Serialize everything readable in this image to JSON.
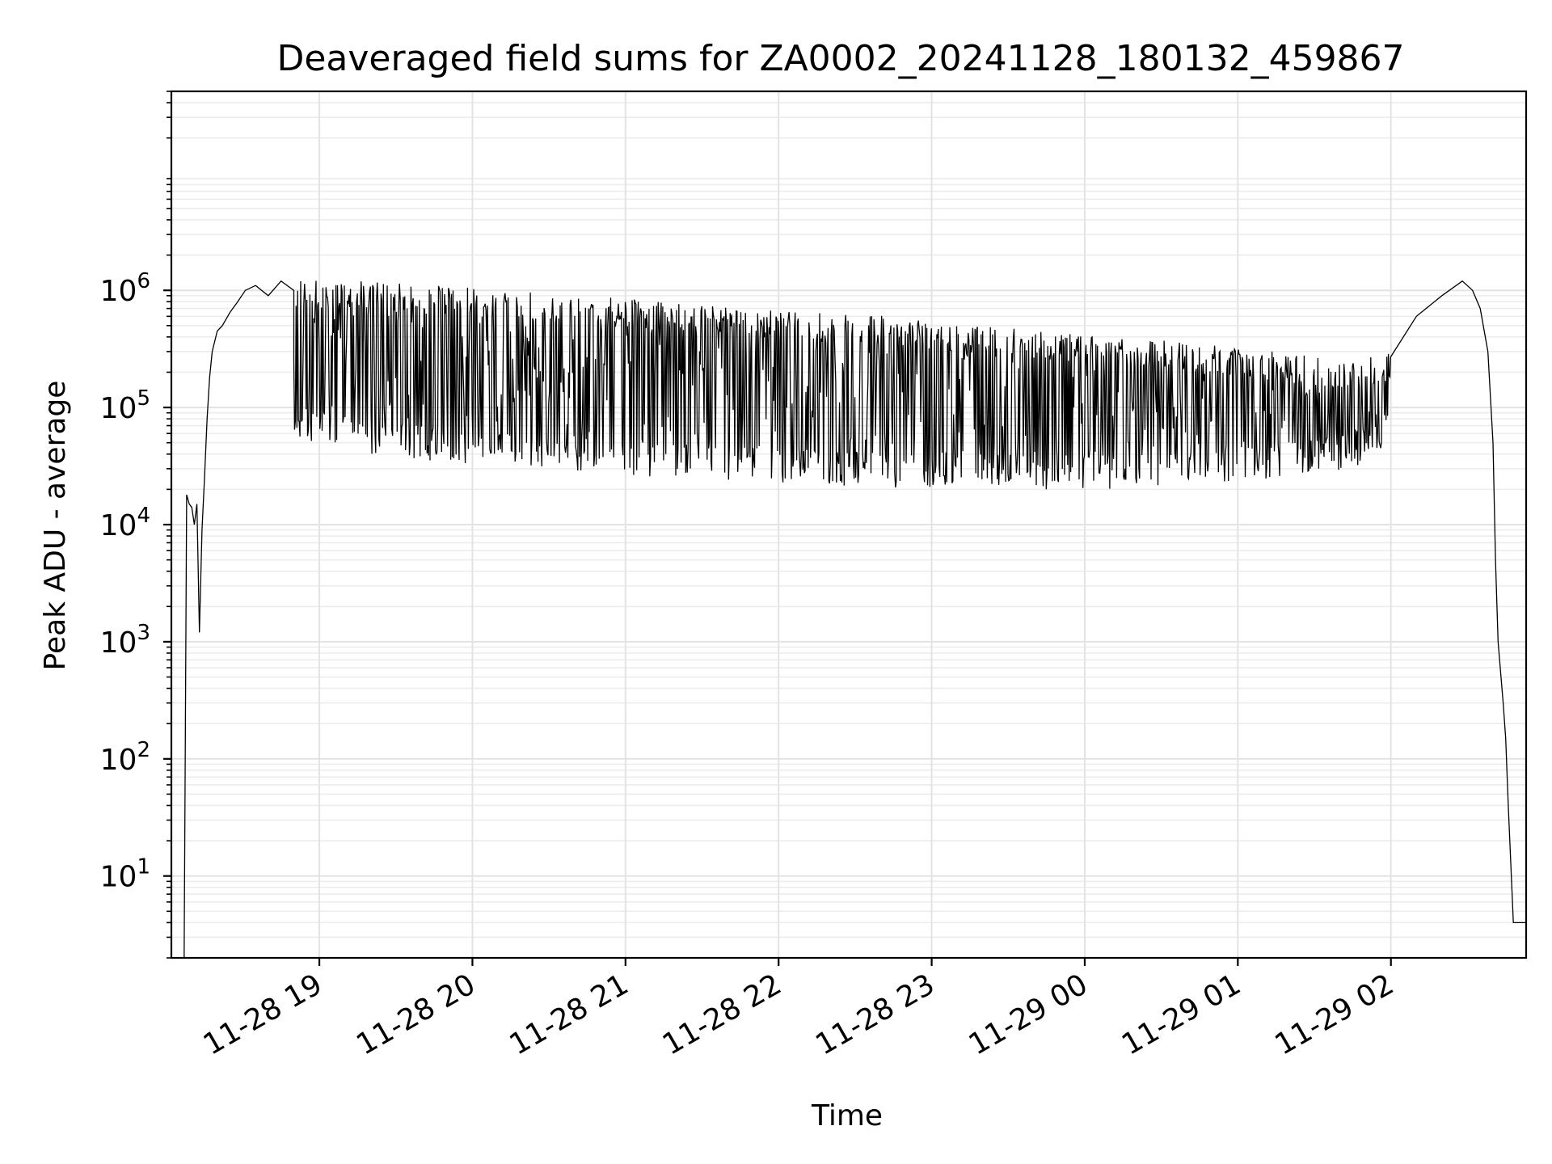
{
  "chart_data": {
    "type": "line",
    "title": "Deaveraged field sums for ZA0002_20241128_180132_459867",
    "xlabel": "Time",
    "ylabel": "Peak ADU - average",
    "yscale": "log",
    "ylim": [
      2,
      50000000
    ],
    "xlim": [
      "2024-11-28 18:02",
      "2024-11-29 02:53"
    ],
    "grid": true,
    "x_tick_labels": [
      "11-28 19",
      "11-28 20",
      "11-28 21",
      "11-28 22",
      "11-28 23",
      "11-29 00",
      "11-29 01",
      "11-29 02"
    ],
    "x_ticks": [
      "2024-11-28 19:00",
      "2024-11-28 20:00",
      "2024-11-28 21:00",
      "2024-11-28 22:00",
      "2024-11-28 23:00",
      "2024-11-29 00:00",
      "2024-11-29 01:00",
      "2024-11-29 02:00"
    ],
    "y_ticks": [
      {
        "base": "10",
        "exp": "1",
        "value": 10
      },
      {
        "base": "10",
        "exp": "2",
        "value": 100
      },
      {
        "base": "10",
        "exp": "3",
        "value": 1000
      },
      {
        "base": "10",
        "exp": "4",
        "value": 10000
      },
      {
        "base": "10",
        "exp": "5",
        "value": 100000
      },
      {
        "base": "10",
        "exp": "6",
        "value": 1000000
      }
    ],
    "series": [
      {
        "color": "#000000",
        "x": [
          "2024-11-28 18:07",
          "2024-11-28 18:08",
          "2024-11-28 18:09",
          "2024-11-28 18:10",
          "2024-11-28 18:11",
          "2024-11-28 18:12",
          "2024-11-28 18:13",
          "2024-11-28 18:14",
          "2024-11-28 18:15",
          "2024-11-28 18:16",
          "2024-11-28 18:17",
          "2024-11-28 18:18",
          "2024-11-28 18:20",
          "2024-11-28 18:22",
          "2024-11-28 18:25",
          "2024-11-28 18:28",
          "2024-11-28 18:31",
          "2024-11-28 18:35",
          "2024-11-28 18:40",
          "2024-11-28 18:45",
          "2024-11-28 18:50",
          "2024-11-28 19:00",
          "2024-11-28 19:30",
          "2024-11-28 20:00",
          "2024-11-28 20:30",
          "2024-11-28 21:00",
          "2024-11-28 21:30",
          "2024-11-28 22:00",
          "2024-11-28 22:30",
          "2024-11-28 23:00",
          "2024-11-28 23:30",
          "2024-11-29 00:00",
          "2024-11-29 00:30",
          "2024-11-29 01:00",
          "2024-11-29 01:30",
          "2024-11-29 01:50",
          "2024-11-29 02:00",
          "2024-11-29 02:10",
          "2024-11-29 02:20",
          "2024-11-29 02:28",
          "2024-11-29 02:32",
          "2024-11-29 02:35",
          "2024-11-29 02:38",
          "2024-11-29 02:40",
          "2024-11-29 02:41",
          "2024-11-29 02:42",
          "2024-11-29 02:44",
          "2024-11-29 02:45",
          "2024-11-29 02:46",
          "2024-11-29 02:48",
          "2024-11-29 02:50",
          "2024-11-29 02:53"
        ],
        "y": [
          2,
          18000,
          15000,
          14000,
          10000,
          15000,
          1200,
          9000,
          25000,
          80000,
          180000,
          300000,
          450000,
          500000,
          650000,
          800000,
          1000000,
          1100000,
          900000,
          1200000,
          1000000,
          900000,
          800000,
          700000,
          600000,
          500000,
          450000,
          400000,
          350000,
          300000,
          250000,
          230000,
          200000,
          200000,
          220000,
          250000,
          400000,
          600000,
          900000,
          1200000,
          1000000,
          700000,
          300000,
          50000,
          5000,
          1000,
          300,
          150,
          40,
          4,
          4,
          4
        ],
        "high_envelope": [
          1300000,
          1200000,
          1100000,
          1000000,
          900000,
          800000,
          700000,
          650000,
          600000,
          500000,
          450000,
          400000,
          350000,
          300000,
          250000,
          300000
        ],
        "low_envelope": [
          50000,
          40000,
          35000,
          30000,
          28000,
          25000,
          24000,
          22000,
          20000,
          20000,
          20000,
          20000,
          22000,
          25000,
          30000,
          50000
        ],
        "envelope_x": [
          "2024-11-28 18:50",
          "2024-11-28 19:15",
          "2024-11-28 19:45",
          "2024-11-28 20:15",
          "2024-11-28 20:45",
          "2024-11-28 21:15",
          "2024-11-28 21:45",
          "2024-11-28 22:15",
          "2024-11-28 22:45",
          "2024-11-28 23:15",
          "2024-11-28 23:45",
          "2024-11-29 00:15",
          "2024-11-29 00:45",
          "2024-11-29 01:15",
          "2024-11-29 01:45",
          "2024-11-29 02:00"
        ]
      }
    ]
  }
}
